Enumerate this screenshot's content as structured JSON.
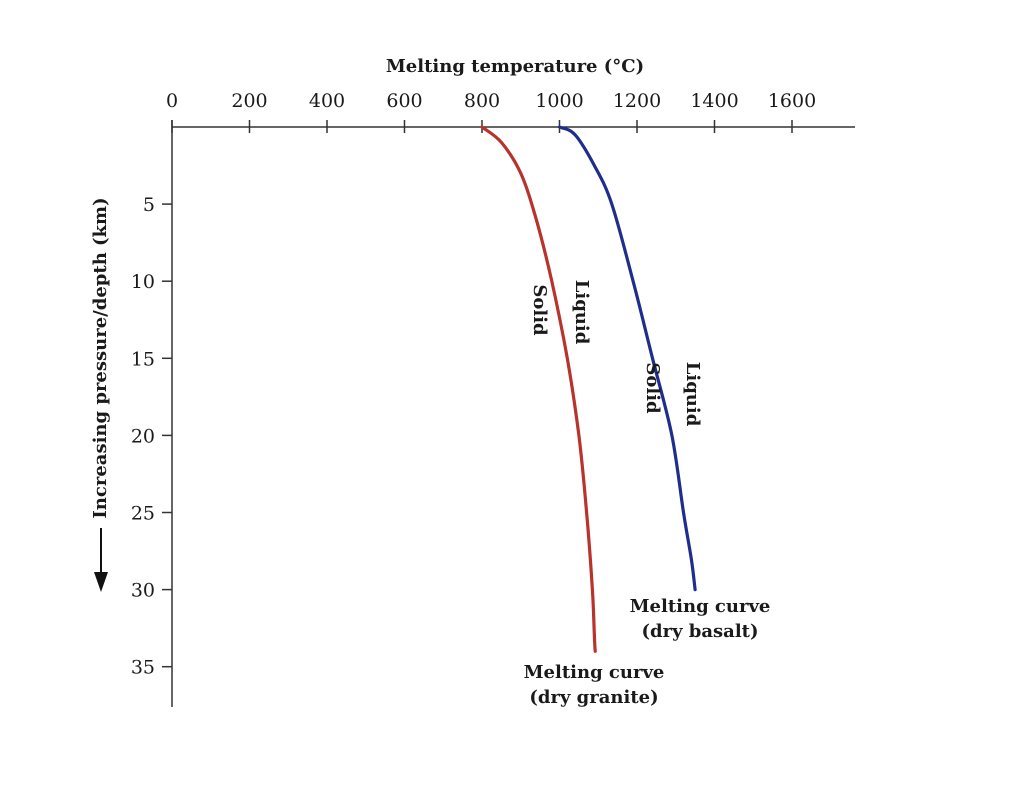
{
  "chart_data": {
    "type": "line",
    "title": "",
    "xlabel": "Melting temperature (°C)",
    "ylabel": "Increasing pressure/depth (km)",
    "x_axis_position": "top",
    "y_axis_inverted": true,
    "xlim": [
      0,
      1750
    ],
    "ylim": [
      0,
      37
    ],
    "xticks": [
      0,
      200,
      400,
      600,
      800,
      1000,
      1200,
      1400,
      1600
    ],
    "yticks": [
      5,
      10,
      15,
      20,
      25,
      30,
      35
    ],
    "grid": false,
    "series": [
      {
        "name": "Melting curve (dry granite)",
        "color": "#b8332b",
        "label_lines": [
          "Melting curve",
          "(dry granite)"
        ],
        "phase_labels": [
          "Solid",
          "Liquid"
        ],
        "x": [
          800,
          850,
          900,
          940,
          980,
          1020,
          1050,
          1070,
          1085,
          1090,
          1092
        ],
        "y": [
          0,
          1,
          3,
          6,
          10,
          15,
          20,
          25,
          30,
          33,
          34
        ]
      },
      {
        "name": "Melting curve (dry basalt)",
        "color": "#1f2e8c",
        "label_lines": [
          "Melting curve",
          "(dry basalt)"
        ],
        "phase_labels": [
          "Solid",
          "Liquid"
        ],
        "x": [
          1000,
          1040,
          1090,
          1135,
          1190,
          1240,
          1290,
          1320,
          1340,
          1350
        ],
        "y": [
          0,
          0.5,
          2.5,
          5,
          10,
          15,
          20,
          25,
          28,
          30
        ]
      }
    ]
  }
}
